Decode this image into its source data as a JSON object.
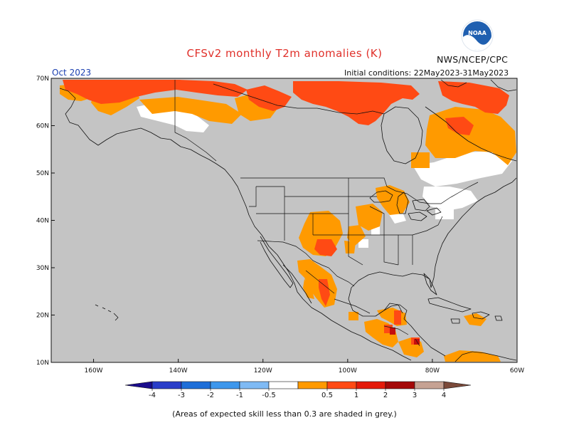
{
  "header": {
    "title": "CFSv2 monthly T2m anomalies (K)",
    "agency": "NWS/NCEP/CPC",
    "month": "Oct 2023",
    "initial_conditions": "Initial conditions: 22May2023-31May2023"
  },
  "logo": {
    "text": "NOAA"
  },
  "map": {
    "lat_labels": [
      "70N",
      "60N",
      "50N",
      "40N",
      "30N",
      "20N",
      "10N"
    ],
    "lon_labels": [
      "160W",
      "140W",
      "120W",
      "100W",
      "80W",
      "60W"
    ],
    "background_color": "#c4c4c4"
  },
  "colorbar": {
    "labels": [
      "-4",
      "-3",
      "-2",
      "-1",
      "-0.5",
      "0.5",
      "1",
      "2",
      "3",
      "4"
    ],
    "colors": [
      "#1a0c8c",
      "#2a3ec9",
      "#1e6ed8",
      "#3d97ec",
      "#7fbaf4",
      "#ffffff",
      "#ff9a00",
      "#ff4a14",
      "#e41a0a",
      "#a40808",
      "#c6a293",
      "#7b4a3a"
    ]
  },
  "footnote": "(Areas of expected skill less than 0.3 are shaded in grey.)"
}
